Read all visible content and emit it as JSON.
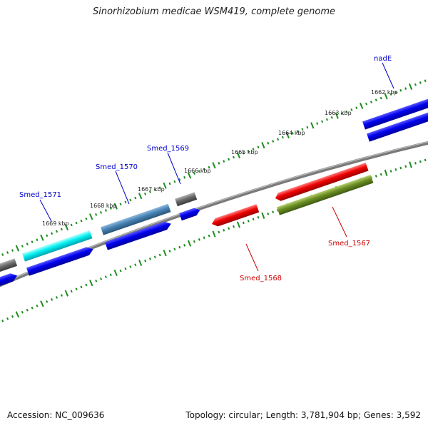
{
  "title": "Sinorhizobium medicae WSM419, complete genome",
  "footer": {
    "accession": "Accession: NC_009636",
    "summary": "Topology: circular; Length: 3,781,904 bp; Genes: 3,592"
  },
  "colors": {
    "backbone": "#808080",
    "tick": "#1e8c1e",
    "forward_label": "#0000cc",
    "reverse_label": "#cc0000"
  },
  "scale_labels": [
    "1662 kbp",
    "1663 kbp",
    "1664 kbp",
    "1665 kbp",
    "1666 kbp",
    "1667 kbp",
    "1668 kbp",
    "1669 kbp"
  ],
  "gene_labels": {
    "nadE": "nadE",
    "smed_1571": "Smed_1571",
    "smed_1570": "Smed_1570",
    "smed_1569": "Smed_1569",
    "smed_1568": "Smed_1568",
    "smed_1567": "Smed_1567"
  }
}
